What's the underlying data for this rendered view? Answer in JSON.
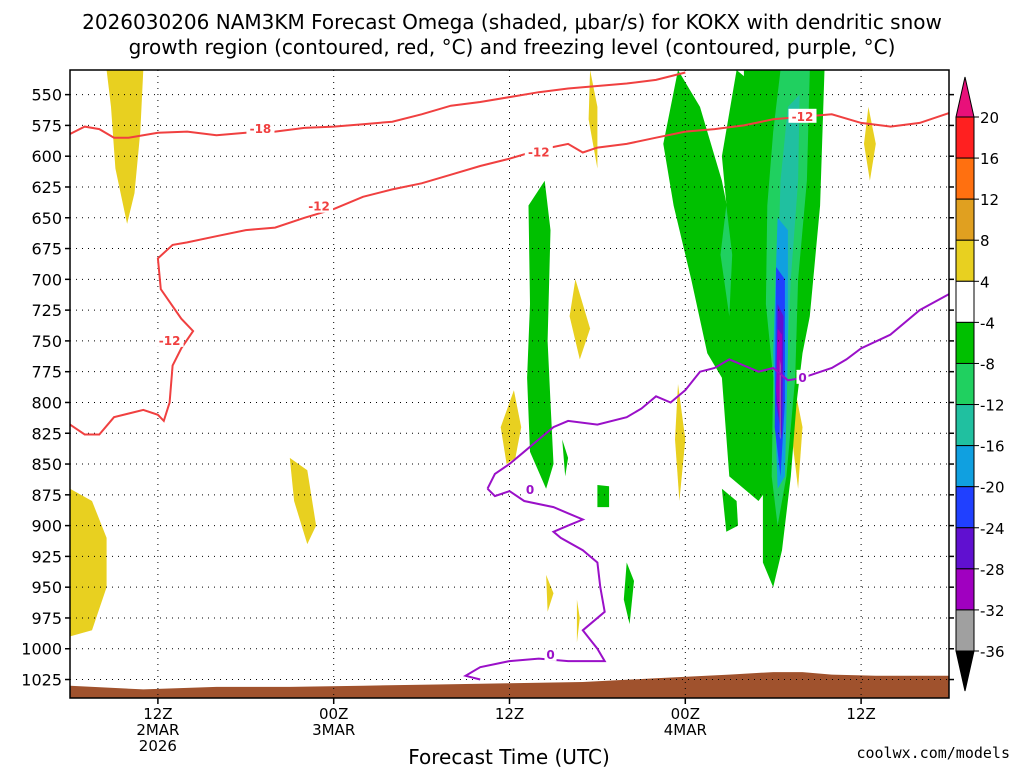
{
  "chart_data": {
    "type": "heatmap",
    "title_line1": "2026030206 NAM3KM Forecast Omega (shaded, μbar/s) for KOKX with dendritic snow",
    "title_line2": "growth region (contoured, red, °C) and freezing level (contoured, purple, °C)",
    "xlabel": "Forecast Time (UTC)",
    "y_ticks": [
      550,
      575,
      600,
      625,
      650,
      675,
      700,
      725,
      750,
      775,
      800,
      825,
      850,
      875,
      900,
      925,
      950,
      975,
      1000,
      1025
    ],
    "ylim": [
      530,
      1040
    ],
    "xlim_hours": [
      0,
      60
    ],
    "x_ticks": [
      {
        "hour": 6,
        "lines": [
          "12Z",
          "2MAR",
          "2026"
        ]
      },
      {
        "hour": 18,
        "lines": [
          "00Z",
          "3MAR"
        ]
      },
      {
        "hour": 30,
        "lines": [
          "12Z"
        ]
      },
      {
        "hour": 42,
        "lines": [
          "00Z",
          "4MAR"
        ]
      },
      {
        "hour": 54,
        "lines": [
          "12Z"
        ]
      }
    ],
    "colorbar": {
      "levels": [
        20,
        16,
        12,
        8,
        4,
        -4,
        -8,
        -12,
        -16,
        -20,
        -24,
        -28,
        -32,
        -36
      ],
      "colors": [
        "#ff2020",
        "#ff7010",
        "#e0a020",
        "#e8d020",
        "#ffffff",
        "#00c000",
        "#20d060",
        "#20c0a0",
        "#10a0e0",
        "#2040ff",
        "#6010d0",
        "#a000c0",
        "#a0a0a0"
      ],
      "top_arrow_color": "#e8107a",
      "bottom_arrow_color": "#000000"
    },
    "contour_labels": {
      "red": [
        "-18",
        "-12",
        "-12",
        "-12",
        "-12"
      ],
      "purple": [
        "0",
        "0",
        "0"
      ]
    },
    "colors": {
      "dgz_contour": "#f04040",
      "freezing_contour": "#9a10c8",
      "terrain": "#a0522d"
    },
    "dgz_contours": [
      [
        [
          0,
          582
        ],
        [
          1,
          576
        ],
        [
          2,
          578
        ],
        [
          3,
          585
        ],
        [
          4,
          585
        ],
        [
          6,
          581
        ],
        [
          8,
          580
        ],
        [
          10,
          583
        ],
        [
          12,
          581
        ],
        [
          14,
          580
        ],
        [
          16,
          577
        ],
        [
          18,
          576
        ],
        [
          20,
          574
        ],
        [
          22,
          572
        ],
        [
          24,
          566
        ],
        [
          26,
          559
        ],
        [
          28,
          556
        ],
        [
          30,
          552
        ],
        [
          32,
          548
        ],
        [
          34,
          545
        ],
        [
          36,
          543
        ],
        [
          38,
          541
        ],
        [
          40,
          538
        ],
        [
          42,
          532
        ]
      ],
      [
        [
          0,
          818
        ],
        [
          1,
          826
        ],
        [
          2,
          826
        ],
        [
          3,
          812
        ],
        [
          5,
          806
        ],
        [
          6,
          810
        ],
        [
          6.4,
          815
        ],
        [
          6.8,
          800
        ],
        [
          7,
          770
        ],
        [
          7.6,
          756
        ],
        [
          8.4,
          742
        ],
        [
          7.6,
          732
        ],
        [
          6.2,
          708
        ],
        [
          6,
          683
        ],
        [
          7,
          672
        ],
        [
          8,
          670
        ],
        [
          10,
          665
        ],
        [
          12,
          660
        ],
        [
          14,
          658
        ],
        [
          16,
          650
        ],
        [
          18,
          643
        ],
        [
          20,
          633
        ],
        [
          22,
          627
        ],
        [
          24,
          622
        ],
        [
          26,
          615
        ],
        [
          28,
          608
        ],
        [
          30,
          602
        ],
        [
          32,
          595
        ],
        [
          34,
          590
        ],
        [
          35,
          597
        ],
        [
          36,
          593
        ],
        [
          38,
          590
        ],
        [
          40,
          585
        ],
        [
          42,
          580
        ],
        [
          44,
          578
        ],
        [
          46,
          575
        ],
        [
          48,
          570
        ],
        [
          50,
          568
        ],
        [
          52,
          566
        ],
        [
          54,
          573
        ],
        [
          56,
          576
        ],
        [
          58,
          573
        ],
        [
          60,
          565
        ]
      ]
    ],
    "freezing_contours": [
      [
        [
          28.5,
          870
        ],
        [
          29,
          858
        ],
        [
          30,
          850
        ],
        [
          31,
          840
        ],
        [
          32,
          830
        ],
        [
          33,
          820
        ],
        [
          34,
          815
        ],
        [
          36,
          818
        ],
        [
          38,
          812
        ],
        [
          39,
          805
        ],
        [
          40,
          795
        ],
        [
          41,
          800
        ],
        [
          42,
          790
        ],
        [
          43,
          775
        ],
        [
          44,
          772
        ],
        [
          45,
          765
        ],
        [
          46,
          770
        ],
        [
          47,
          775
        ],
        [
          48,
          772
        ],
        [
          49,
          782
        ],
        [
          50,
          780
        ],
        [
          52,
          772
        ],
        [
          53,
          765
        ],
        [
          54,
          756
        ],
        [
          56,
          745
        ],
        [
          58,
          725
        ],
        [
          60,
          712
        ]
      ],
      [
        [
          28.5,
          870
        ],
        [
          29,
          876
        ],
        [
          30,
          872
        ],
        [
          31,
          880
        ],
        [
          33,
          885
        ],
        [
          34,
          890
        ],
        [
          35,
          895
        ],
        [
          34,
          900
        ],
        [
          33,
          905
        ],
        [
          33.5,
          910
        ],
        [
          35,
          920
        ],
        [
          36,
          930
        ],
        [
          36.2,
          950
        ],
        [
          36.5,
          970
        ],
        [
          35,
          985
        ],
        [
          36,
          1000
        ],
        [
          36.5,
          1010
        ],
        [
          34,
          1010
        ],
        [
          32,
          1008
        ],
        [
          30,
          1010
        ],
        [
          28,
          1015
        ],
        [
          27,
          1022
        ],
        [
          28,
          1025
        ]
      ]
    ],
    "omega_regions": [
      {
        "level": "4",
        "points": [
          [
            2.5,
            530
          ],
          [
            5,
            530
          ],
          [
            4.8,
            580
          ],
          [
            4.4,
            630
          ],
          [
            3.9,
            655
          ],
          [
            3.1,
            610
          ],
          [
            2.8,
            560
          ]
        ]
      },
      {
        "level": "4",
        "points": [
          [
            0,
            870
          ],
          [
            1.5,
            880
          ],
          [
            2.5,
            910
          ],
          [
            2.5,
            950
          ],
          [
            1.5,
            985
          ],
          [
            0,
            990
          ]
        ]
      },
      {
        "level": "4",
        "points": [
          [
            15,
            845
          ],
          [
            16.2,
            855
          ],
          [
            16.8,
            900
          ],
          [
            16.2,
            915
          ],
          [
            15.3,
            880
          ]
        ]
      },
      {
        "level": "4",
        "points": [
          [
            29.4,
            820
          ],
          [
            30.3,
            790
          ],
          [
            30.8,
            820
          ],
          [
            30.4,
            845
          ],
          [
            29.8,
            850
          ]
        ]
      },
      {
        "level": "4",
        "points": [
          [
            35.5,
            530
          ],
          [
            36,
            560
          ],
          [
            36,
            610
          ],
          [
            35.4,
            570
          ]
        ]
      },
      {
        "level": "4",
        "points": [
          [
            34.5,
            700
          ],
          [
            35.5,
            740
          ],
          [
            34.8,
            765
          ],
          [
            34.1,
            730
          ]
        ]
      },
      {
        "level": "4",
        "points": [
          [
            54.5,
            560
          ],
          [
            55,
            590
          ],
          [
            54.6,
            620
          ],
          [
            54.2,
            590
          ]
        ]
      },
      {
        "level": "4",
        "points": [
          [
            41.5,
            785
          ],
          [
            42,
            830
          ],
          [
            41.6,
            880
          ],
          [
            41.3,
            830
          ]
        ]
      },
      {
        "level": "4",
        "points": [
          [
            49.5,
            790
          ],
          [
            50,
            820
          ],
          [
            49.7,
            870
          ],
          [
            49.3,
            830
          ]
        ]
      },
      {
        "level": "4",
        "points": [
          [
            32.5,
            940
          ],
          [
            33,
            955
          ],
          [
            32.6,
            970
          ]
        ]
      },
      {
        "level": "4",
        "points": [
          [
            34.6,
            960
          ],
          [
            34.8,
            975
          ],
          [
            34.6,
            995
          ]
        ]
      },
      {
        "level": "-4",
        "points": [
          [
            31.3,
            640
          ],
          [
            32.4,
            620
          ],
          [
            32.8,
            660
          ],
          [
            32.6,
            750
          ],
          [
            32.8,
            800
          ],
          [
            33,
            850
          ],
          [
            32.5,
            870
          ],
          [
            31.4,
            840
          ],
          [
            31.2,
            780
          ],
          [
            31.4,
            720
          ]
        ]
      },
      {
        "level": "-4",
        "points": [
          [
            41.5,
            530
          ],
          [
            43,
            560
          ],
          [
            44.5,
            620
          ],
          [
            45.5,
            680
          ],
          [
            46.6,
            730
          ],
          [
            47.2,
            780
          ],
          [
            48.2,
            840
          ],
          [
            47.6,
            870
          ],
          [
            47,
            880
          ],
          [
            45,
            860
          ],
          [
            44.5,
            780
          ],
          [
            43.5,
            760
          ],
          [
            42.4,
            700
          ],
          [
            41.2,
            640
          ],
          [
            40.5,
            590
          ]
        ]
      },
      {
        "level": "-4",
        "points": [
          [
            44.5,
            600
          ],
          [
            45.5,
            530
          ],
          [
            46.5,
            540
          ],
          [
            46.8,
            600
          ],
          [
            46.6,
            700
          ],
          [
            45.6,
            740
          ]
        ]
      },
      {
        "level": "-4",
        "points": [
          [
            46,
            530
          ],
          [
            51.5,
            530
          ],
          [
            51.2,
            640
          ],
          [
            50.5,
            730
          ],
          [
            50,
            760
          ],
          [
            49.6,
            800
          ],
          [
            49.2,
            860
          ],
          [
            48.6,
            920
          ],
          [
            48,
            950
          ],
          [
            47.3,
            930
          ],
          [
            47.3,
            860
          ],
          [
            46.5,
            830
          ],
          [
            46.2,
            760
          ],
          [
            46,
            700
          ]
        ]
      },
      {
        "level": "-4",
        "points": [
          [
            44.5,
            870
          ],
          [
            45.5,
            880
          ],
          [
            45.6,
            900
          ],
          [
            44.8,
            905
          ]
        ]
      },
      {
        "level": "-4",
        "points": [
          [
            36,
            867
          ],
          [
            36.8,
            868
          ],
          [
            36.8,
            885
          ],
          [
            36,
            885
          ]
        ]
      },
      {
        "level": "-4",
        "points": [
          [
            38,
            930
          ],
          [
            38.5,
            945
          ],
          [
            38.2,
            980
          ],
          [
            37.8,
            960
          ]
        ]
      },
      {
        "level": "-4",
        "points": [
          [
            33.6,
            830
          ],
          [
            34,
            845
          ],
          [
            33.8,
            860
          ]
        ]
      },
      {
        "level": "-8",
        "points": [
          [
            44.8,
            640
          ],
          [
            45.2,
            680
          ],
          [
            45,
            730
          ],
          [
            44.4,
            680
          ]
        ]
      },
      {
        "level": "-8",
        "points": [
          [
            48.5,
            530
          ],
          [
            50.5,
            530
          ],
          [
            50.3,
            620
          ],
          [
            49.7,
            700
          ],
          [
            49.5,
            780
          ],
          [
            48.9,
            860
          ],
          [
            48.3,
            900
          ],
          [
            47.9,
            860
          ],
          [
            48,
            780
          ],
          [
            47.5,
            720
          ],
          [
            47.6,
            640
          ],
          [
            48,
            580
          ]
        ]
      },
      {
        "level": "-12",
        "points": [
          [
            49,
            560
          ],
          [
            49.8,
            550
          ],
          [
            49.7,
            620
          ],
          [
            49.2,
            700
          ],
          [
            48.9,
            780
          ],
          [
            48.6,
            830
          ],
          [
            48.2,
            800
          ],
          [
            48.3,
            700
          ],
          [
            48.5,
            620
          ]
        ]
      },
      {
        "level": "-16",
        "points": [
          [
            48.3,
            650
          ],
          [
            49,
            660
          ],
          [
            49,
            760
          ],
          [
            48.8,
            860
          ],
          [
            48.3,
            870
          ],
          [
            48,
            760
          ]
        ]
      },
      {
        "level": "-20",
        "points": [
          [
            48.2,
            690
          ],
          [
            48.8,
            700
          ],
          [
            48.8,
            800
          ],
          [
            48.5,
            860
          ],
          [
            48.1,
            820
          ]
        ]
      },
      {
        "level": "-24",
        "points": [
          [
            48.3,
            720
          ],
          [
            48.7,
            730
          ],
          [
            48.6,
            830
          ],
          [
            48.2,
            800
          ]
        ]
      },
      {
        "level": "-28",
        "points": [
          [
            48.3,
            740
          ],
          [
            48.6,
            745
          ],
          [
            48.5,
            820
          ],
          [
            48.2,
            790
          ]
        ]
      },
      {
        "level": "-32",
        "points": [
          [
            48.45,
            765
          ],
          [
            48.5,
            770
          ],
          [
            48.5,
            830
          ],
          [
            48.45,
            828
          ]
        ]
      }
    ],
    "terrain": [
      [
        0,
        1030
      ],
      [
        5,
        1033
      ],
      [
        10,
        1031
      ],
      [
        15,
        1031
      ],
      [
        20,
        1030
      ],
      [
        25,
        1029
      ],
      [
        30,
        1028
      ],
      [
        35,
        1027
      ],
      [
        40,
        1024
      ],
      [
        45,
        1021
      ],
      [
        48,
        1019
      ],
      [
        50,
        1019
      ],
      [
        52,
        1021
      ],
      [
        55,
        1022
      ],
      [
        60,
        1022
      ]
    ]
  },
  "footer": {
    "credit": "coolwx.com/models"
  }
}
